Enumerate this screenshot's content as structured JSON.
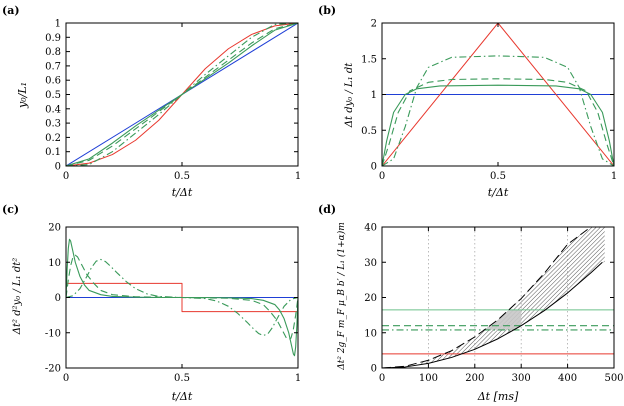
{
  "colors": {
    "red": "#e8382e",
    "blue": "#1f3fd6",
    "green": "#3a9a5a",
    "ltgreen": "#6cc08a",
    "gray": "#aaaaaa"
  },
  "chart_data": [
    {
      "panel": "(a)",
      "type": "line",
      "xlabel": "t/Δt",
      "ylabel": "y₀/L₁",
      "xlim": [
        0,
        1
      ],
      "ylim": [
        0,
        1
      ],
      "xticks": [
        "0",
        "0.5",
        "1"
      ],
      "yticks": [
        "0",
        "0.1",
        "0.2",
        "0.3",
        "0.4",
        "0.5",
        "0.6",
        "0.7",
        "0.8",
        "0.9",
        "1"
      ],
      "series": [
        {
          "style": "blue-solid",
          "x": [
            0,
            1
          ],
          "y": [
            0,
            1
          ]
        },
        {
          "style": "red-solid",
          "x": [
            0,
            0.1,
            0.2,
            0.3,
            0.4,
            0.5,
            0.6,
            0.7,
            0.8,
            0.9,
            1
          ],
          "y": [
            0,
            0.02,
            0.08,
            0.18,
            0.32,
            0.5,
            0.68,
            0.82,
            0.92,
            0.98,
            1
          ]
        },
        {
          "style": "green-solid",
          "x": [
            0,
            0.1,
            0.2,
            0.3,
            0.4,
            0.5,
            0.6,
            0.7,
            0.8,
            0.9,
            1
          ],
          "y": [
            0,
            0.05,
            0.16,
            0.28,
            0.39,
            0.5,
            0.61,
            0.72,
            0.84,
            0.95,
            1
          ]
        },
        {
          "style": "green-dash",
          "x": [
            0,
            0.1,
            0.2,
            0.3,
            0.4,
            0.5,
            0.6,
            0.7,
            0.8,
            0.9,
            1
          ],
          "y": [
            0,
            0.04,
            0.14,
            0.26,
            0.38,
            0.5,
            0.62,
            0.74,
            0.86,
            0.96,
            1
          ]
        },
        {
          "style": "green-dashdot",
          "x": [
            0,
            0.1,
            0.2,
            0.3,
            0.4,
            0.5,
            0.6,
            0.7,
            0.8,
            0.9,
            1
          ],
          "y": [
            0,
            0.01,
            0.1,
            0.23,
            0.36,
            0.5,
            0.64,
            0.77,
            0.9,
            0.99,
            1
          ]
        }
      ]
    },
    {
      "panel": "(b)",
      "type": "line",
      "xlabel": "t/Δt",
      "ylabel": "Δt dy₀ / L₁ dt",
      "xlim": [
        0,
        1
      ],
      "ylim": [
        0,
        2
      ],
      "xticks": [
        "0",
        "0.5",
        "1"
      ],
      "yticks": [
        "0",
        "0.5",
        "1",
        "1.5",
        "2"
      ],
      "series": [
        {
          "style": "blue-solid",
          "x": [
            0,
            1
          ],
          "y": [
            1,
            1
          ]
        },
        {
          "style": "red-solid",
          "x": [
            0,
            0.5,
            1
          ],
          "y": [
            0,
            2,
            0
          ]
        },
        {
          "style": "green-solid",
          "x": [
            0,
            0.02,
            0.05,
            0.1,
            0.15,
            0.25,
            0.5,
            0.75,
            0.85,
            0.9,
            0.95,
            0.98,
            1
          ],
          "y": [
            0,
            0.35,
            0.75,
            1.0,
            1.08,
            1.12,
            1.13,
            1.12,
            1.08,
            1.0,
            0.75,
            0.35,
            0
          ]
        },
        {
          "style": "green-dash",
          "x": [
            0,
            0.03,
            0.07,
            0.12,
            0.2,
            0.3,
            0.5,
            0.7,
            0.8,
            0.88,
            0.93,
            0.97,
            1
          ],
          "y": [
            0,
            0.3,
            0.75,
            1.05,
            1.17,
            1.21,
            1.22,
            1.21,
            1.17,
            1.05,
            0.75,
            0.3,
            0
          ]
        },
        {
          "style": "green-dashdot",
          "x": [
            0,
            0.05,
            0.1,
            0.15,
            0.2,
            0.3,
            0.5,
            0.7,
            0.8,
            0.85,
            0.9,
            0.95,
            1
          ],
          "y": [
            0,
            0.1,
            0.55,
            1.1,
            1.38,
            1.52,
            1.54,
            1.52,
            1.38,
            1.1,
            0.55,
            0.1,
            0
          ]
        }
      ]
    },
    {
      "panel": "(c)",
      "type": "line",
      "xlabel": "t/Δt",
      "ylabel": "Δt² d²y₀ / L₁ dt²",
      "xlim": [
        0,
        1
      ],
      "ylim": [
        -20,
        20
      ],
      "xticks": [
        "0",
        "0.5",
        "1"
      ],
      "yticks": [
        "-20",
        "-10",
        "0",
        "10",
        "20"
      ],
      "series": [
        {
          "style": "blue-solid",
          "x": [
            0,
            1
          ],
          "y": [
            0,
            0
          ]
        },
        {
          "style": "red-solid",
          "x": [
            0,
            0.5,
            0.5,
            1
          ],
          "y": [
            4,
            4,
            -4,
            -4
          ]
        },
        {
          "style": "green-solid",
          "x": [
            0,
            0.005,
            0.01,
            0.015,
            0.02,
            0.03,
            0.04,
            0.06,
            0.08,
            0.1,
            0.15,
            0.2,
            0.3,
            0.4,
            0.5,
            0.6,
            0.7,
            0.8,
            0.85,
            0.9,
            0.92,
            0.94,
            0.96,
            0.97,
            0.98,
            0.985,
            0.99,
            0.995,
            1
          ],
          "y": [
            0,
            8,
            14,
            16.5,
            16,
            13,
            10,
            6,
            3.5,
            2,
            0.8,
            0.3,
            0.1,
            0,
            0,
            0,
            -0.1,
            -0.3,
            -0.8,
            -2,
            -3.5,
            -6,
            -10,
            -13,
            -16,
            -16.5,
            -14,
            -8,
            0
          ]
        },
        {
          "style": "green-dash",
          "x": [
            0,
            0.01,
            0.02,
            0.03,
            0.04,
            0.05,
            0.07,
            0.09,
            0.12,
            0.15,
            0.2,
            0.3,
            0.5,
            0.7,
            0.8,
            0.85,
            0.88,
            0.91,
            0.93,
            0.95,
            0.96,
            0.97,
            0.98,
            0.99,
            1
          ],
          "y": [
            0,
            5,
            9,
            11.5,
            12,
            11.5,
            9,
            6.5,
            4,
            2,
            0.8,
            0.2,
            0,
            -0.2,
            -0.8,
            -2,
            -4,
            -6.5,
            -9,
            -11.5,
            -12,
            -11.5,
            -9,
            -5,
            0
          ]
        },
        {
          "style": "green-dashdot",
          "x": [
            0,
            0.03,
            0.06,
            0.09,
            0.11,
            0.13,
            0.15,
            0.17,
            0.19,
            0.22,
            0.26,
            0.3,
            0.35,
            0.4,
            0.5,
            0.6,
            0.65,
            0.7,
            0.74,
            0.78,
            0.81,
            0.83,
            0.85,
            0.87,
            0.89,
            0.91,
            0.94,
            0.97,
            1
          ],
          "y": [
            0,
            0.5,
            2.5,
            6,
            8.5,
            10.3,
            10.8,
            10.2,
            9,
            7,
            4.5,
            2.5,
            1,
            0.3,
            0,
            -0.3,
            -1,
            -2.5,
            -4.5,
            -7,
            -9,
            -10.2,
            -10.8,
            -10.3,
            -8.5,
            -6,
            -2.5,
            -0.5,
            0
          ]
        }
      ]
    },
    {
      "panel": "(d)",
      "type": "line",
      "xlabel": "Δt [ms]",
      "ylabel": "Δt² 2g_F m_F μ_B b′ / L₁ (1+α)m",
      "xlim": [
        0,
        500
      ],
      "ylim": [
        0,
        40
      ],
      "xticks": [
        "0",
        "100",
        "200",
        "300",
        "400",
        "500"
      ],
      "yticks": [
        "0",
        "10",
        "20",
        "30",
        "40"
      ],
      "vlines": [
        100,
        200,
        300,
        400
      ],
      "series": [
        {
          "style": "red-solid",
          "x": [
            0,
            500
          ],
          "y": [
            4,
            4
          ]
        },
        {
          "style": "ltgreen-solid",
          "x": [
            0,
            500
          ],
          "y": [
            16.5,
            16.5
          ]
        },
        {
          "style": "green-dash",
          "x": [
            0,
            500
          ],
          "y": [
            12,
            12
          ]
        },
        {
          "style": "green-dashdot",
          "x": [
            0,
            500
          ],
          "y": [
            10.8,
            10.8
          ]
        },
        {
          "style": "black-solid",
          "x": [
            0,
            50,
            100,
            150,
            200,
            250,
            300,
            350,
            400,
            450,
            475
          ],
          "y": [
            0,
            0.3,
            1.3,
            3,
            5.3,
            8.3,
            12,
            16.3,
            21.3,
            27,
            30
          ]
        },
        {
          "style": "black-dash",
          "x": [
            0,
            50,
            100,
            150,
            200,
            250,
            300,
            350,
            400,
            450
          ],
          "y": [
            0,
            0.5,
            2.2,
            4.9,
            8.8,
            13.7,
            19.7,
            26.9,
            35.1,
            40
          ]
        }
      ]
    }
  ]
}
